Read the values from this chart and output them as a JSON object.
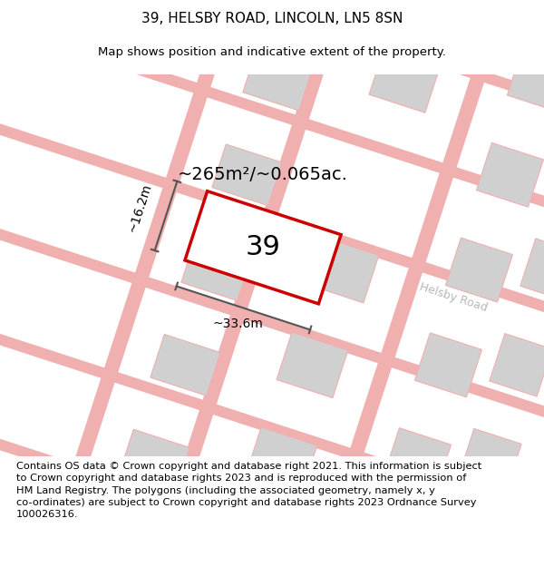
{
  "title": "39, HELSBY ROAD, LINCOLN, LN5 8SN",
  "subtitle": "Map shows position and indicative extent of the property.",
  "footer": "Contains OS data © Crown copyright and database right 2021. This information is subject\nto Crown copyright and database rights 2023 and is reproduced with the permission of\nHM Land Registry. The polygons (including the associated geometry, namely x, y\nco-ordinates) are subject to Crown copyright and database rights 2023 Ordnance Survey\n100026316.",
  "bg_color": "#ffffff",
  "road_line_color": "#f0b0b0",
  "block_fill": "#d0d0d0",
  "block_edge": "#f0b0b0",
  "highlight_fill": "#ffffff",
  "highlight_edge": "#cc0000",
  "road_label": "Helsby Road",
  "road_label_color": "#b8b8b8",
  "label_39": "39",
  "area_label": "~265m²/~0.065ac.",
  "dim_width": "~33.6m",
  "dim_height": "~16.2m",
  "title_fontsize": 11,
  "subtitle_fontsize": 9.5,
  "footer_fontsize": 8.2,
  "dim_fontsize": 10,
  "area_fontsize": 14,
  "label39_fontsize": 22
}
